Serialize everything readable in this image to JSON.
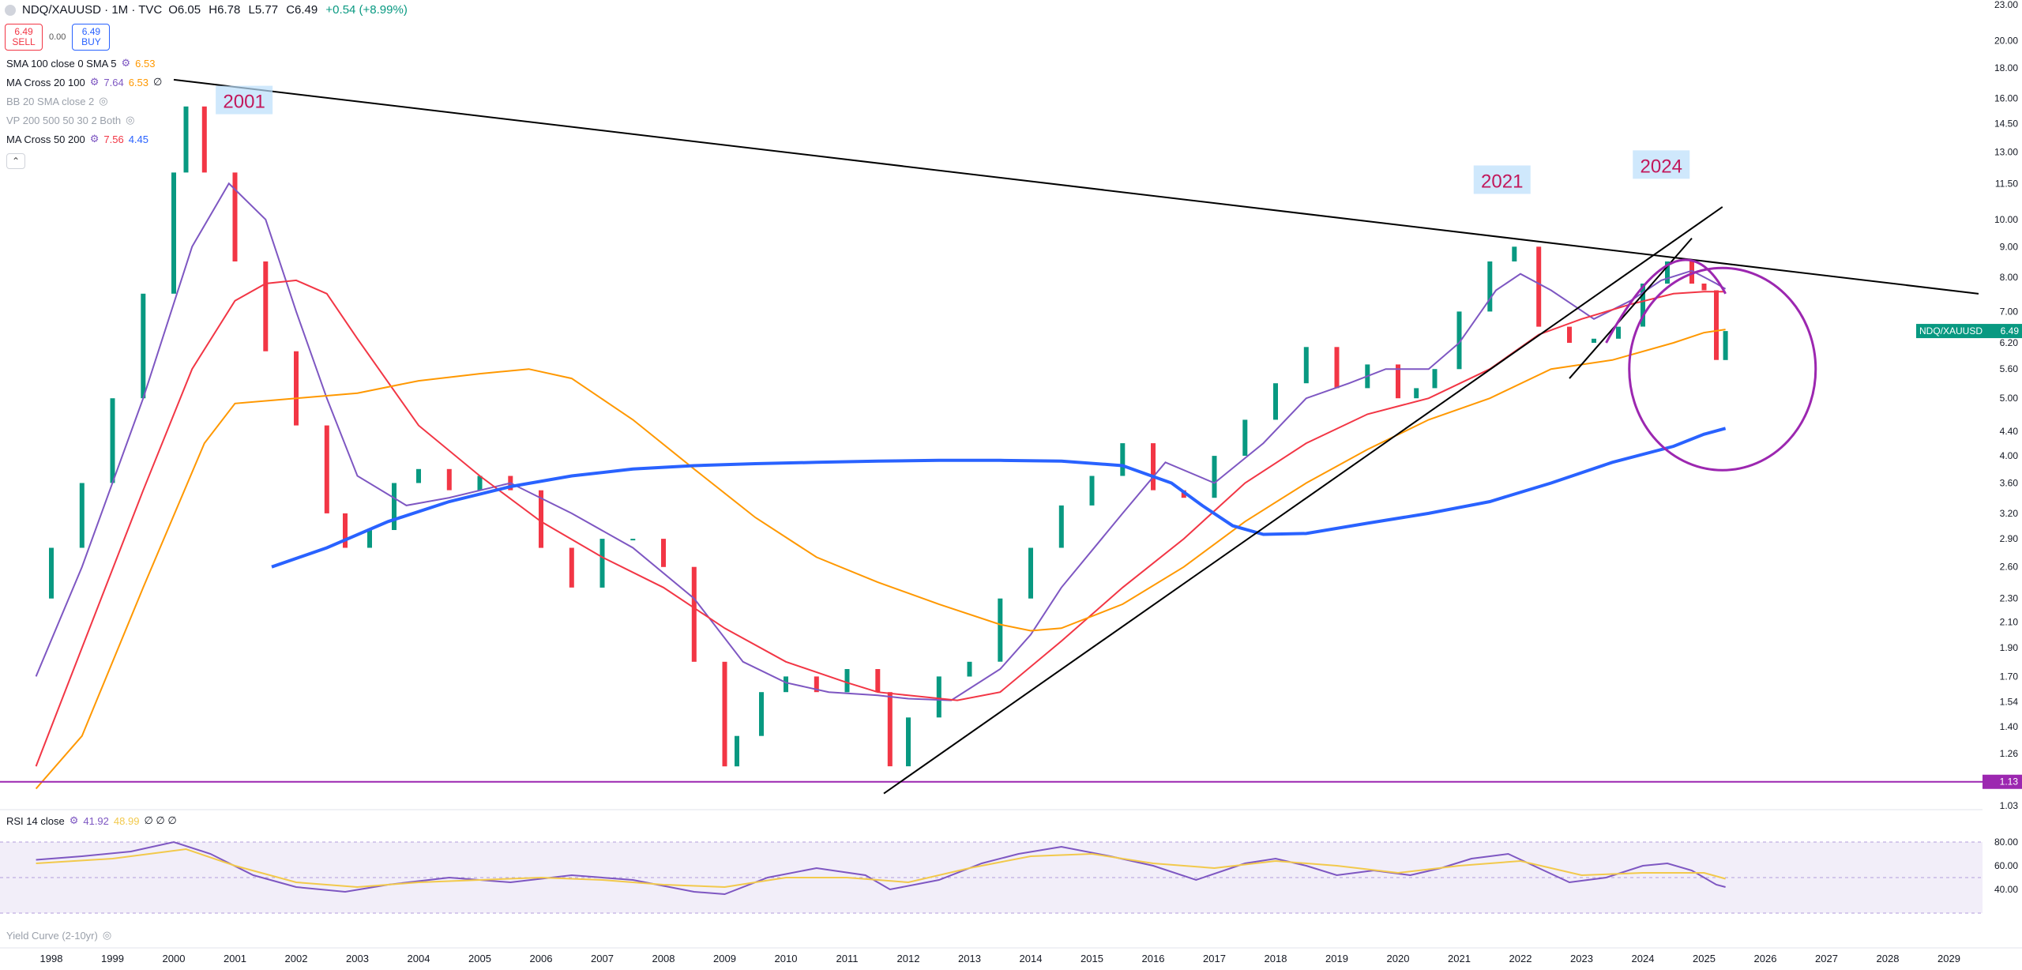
{
  "header": {
    "symbol": "NDQ/XAUUSD · 1M · TVC",
    "o": "O6.05",
    "h": "H6.78",
    "l": "L5.77",
    "c": "C6.49",
    "change": "+0.54 (+8.99%)"
  },
  "trade": {
    "sell_price": "6.49",
    "sell_label": "SELL",
    "spread": "0.00",
    "buy_price": "6.49",
    "buy_label": "BUY"
  },
  "indicators": [
    {
      "name": "SMA 100 close 0 SMA 5",
      "v1": "6.53",
      "v2": "",
      "c1": "#ff9800",
      "c2": ""
    },
    {
      "name": "MA Cross 20 100",
      "v1": "7.64",
      "v2": "6.53",
      "c1": "#7e57c2",
      "c2": "#ff9800"
    },
    {
      "name": "BB 20 SMA close 2",
      "v1": "",
      "v2": "",
      "c1": "",
      "c2": ""
    },
    {
      "name": "VP 200 500 50 30 2 Both",
      "v1": "",
      "v2": "",
      "c1": "",
      "c2": ""
    },
    {
      "name": "MA Cross 50 200",
      "v1": "7.56",
      "v2": "4.45",
      "c1": "#f23645",
      "c2": "#2962ff"
    }
  ],
  "rsi": {
    "name": "RSI 14 close",
    "v1": "41.92",
    "v2": "48.99",
    "empties": "∅ ∅ ∅"
  },
  "yield_curve": {
    "name": "Yield Curve (2-10yr)"
  },
  "annotations": [
    "2001",
    "2021",
    "2024"
  ],
  "colors": {
    "up": "#089981",
    "down": "#f23645",
    "sma5": "#7e57c2",
    "ma50": "#f23645",
    "ma100": "#ff9800",
    "ma200": "#2962ff",
    "support": "#9c27b0",
    "rsi_line": "#7e57c2",
    "rsi_signal": "#f2c94c"
  },
  "chart_data": {
    "type": "line",
    "title": "NDQ/XAUUSD · 1M · TVC",
    "y_scale": "log",
    "ylim": [
      1.03,
      23.0
    ],
    "y_ticks": [
      "23.00",
      "20.00",
      "18.00",
      "16.00",
      "14.50",
      "13.00",
      "11.50",
      "10.00",
      "9.00",
      "8.00",
      "7.00",
      "6.20",
      "5.60",
      "5.00",
      "4.40",
      "4.00",
      "3.60",
      "3.20",
      "2.90",
      "2.60",
      "2.30",
      "2.10",
      "1.90",
      "1.70",
      "1.54",
      "1.40",
      "1.26",
      "1.13",
      "1.03"
    ],
    "x_ticks": [
      "1998",
      "1999",
      "2000",
      "2001",
      "2002",
      "2003",
      "2004",
      "2005",
      "2006",
      "2007",
      "2008",
      "2009",
      "2010",
      "2011",
      "2012",
      "2013",
      "2014",
      "2015",
      "2016",
      "2017",
      "2018",
      "2019",
      "2020",
      "2021",
      "2022",
      "2023",
      "2024",
      "2025",
      "2026",
      "2027",
      "2028",
      "2029"
    ],
    "last_price": {
      "label": "NDQ/XAUUSD",
      "value": 6.49
    },
    "support_level": 1.13,
    "series": [
      {
        "name": "NDQ/XAUUSD",
        "x": [
          1997.75,
          1998.0,
          1998.5,
          1999.0,
          1999.5,
          2000.0,
          2000.2,
          2000.5,
          2001.0,
          2001.5,
          2002.0,
          2002.5,
          2002.8,
          2003.2,
          2003.6,
          2004.0,
          2004.5,
          2005.0,
          2005.5,
          2006.0,
          2006.5,
          2007.0,
          2007.5,
          2008.0,
          2008.5,
          2009.0,
          2009.2,
          2009.6,
          2010.0,
          2010.5,
          2011.0,
          2011.5,
          2011.7,
          2012.0,
          2012.5,
          2013.0,
          2013.5,
          2014.0,
          2014.5,
          2015.0,
          2015.5,
          2016.0,
          2016.5,
          2017.0,
          2017.5,
          2018.0,
          2018.5,
          2019.0,
          2019.5,
          2020.0,
          2020.3,
          2020.6,
          2021.0,
          2021.5,
          2021.9,
          2022.3,
          2022.8,
          2023.2,
          2023.6,
          2024.0,
          2024.4,
          2024.8,
          2025.0,
          2025.2,
          2025.35
        ],
        "y": [
          2.3,
          2.8,
          3.6,
          5.0,
          7.5,
          12.0,
          15.5,
          12.0,
          8.5,
          6.0,
          4.5,
          3.2,
          2.8,
          3.0,
          3.6,
          3.8,
          3.5,
          3.7,
          3.5,
          2.8,
          2.4,
          2.9,
          2.9,
          2.6,
          1.8,
          1.2,
          1.35,
          1.6,
          1.7,
          1.6,
          1.75,
          1.6,
          1.2,
          1.45,
          1.7,
          1.8,
          2.3,
          2.8,
          3.3,
          3.7,
          4.2,
          3.5,
          3.4,
          4.0,
          4.6,
          5.3,
          6.1,
          5.2,
          5.7,
          5.0,
          5.2,
          5.6,
          7.0,
          8.5,
          9.0,
          6.6,
          6.2,
          6.3,
          6.6,
          7.8,
          8.5,
          7.8,
          7.6,
          5.8,
          6.49
        ]
      },
      {
        "name": "SMA 5",
        "x": [
          1997.75,
          1998.5,
          1999.5,
          2000.3,
          2000.9,
          2001.5,
          2002.0,
          2002.5,
          2003.0,
          2003.8,
          2004.5,
          2005.5,
          2006.5,
          2007.5,
          2008.5,
          2009.3,
          2010.0,
          2010.7,
          2011.5,
          2012.0,
          2012.7,
          2013.5,
          2014.0,
          2014.5,
          2015.5,
          2016.2,
          2017.0,
          2017.8,
          2018.5,
          2019.2,
          2019.8,
          2020.5,
          2021.0,
          2021.6,
          2022.0,
          2022.5,
          2023.2,
          2023.8,
          2024.3,
          2024.8,
          2025.2,
          2025.35
        ],
        "y": [
          1.7,
          2.6,
          5.0,
          9.0,
          11.5,
          10.0,
          7.0,
          5.0,
          3.7,
          3.3,
          3.4,
          3.6,
          3.2,
          2.8,
          2.3,
          1.8,
          1.66,
          1.6,
          1.58,
          1.56,
          1.55,
          1.75,
          2.0,
          2.4,
          3.2,
          3.9,
          3.6,
          4.2,
          5.0,
          5.3,
          5.6,
          5.6,
          6.2,
          7.6,
          8.1,
          7.6,
          6.8,
          7.3,
          7.9,
          8.2,
          7.8,
          7.64
        ]
      },
      {
        "name": "MA 50",
        "x": [
          1997.75,
          1998.5,
          1999.5,
          2000.3,
          2001.0,
          2001.5,
          2002.0,
          2002.5,
          2003.0,
          2004.0,
          2005.0,
          2006.0,
          2007.0,
          2008.0,
          2009.0,
          2010.0,
          2011.0,
          2011.5,
          2012.0,
          2012.8,
          2013.5,
          2014.5,
          2015.5,
          2016.5,
          2017.5,
          2018.5,
          2019.5,
          2020.5,
          2021.5,
          2022.3,
          2023.0,
          2023.8,
          2024.5,
          2025.0,
          2025.35
        ],
        "y": [
          1.2,
          1.9,
          3.5,
          5.6,
          7.3,
          7.8,
          7.9,
          7.5,
          6.3,
          4.5,
          3.7,
          3.1,
          2.7,
          2.4,
          2.05,
          1.8,
          1.66,
          1.6,
          1.58,
          1.55,
          1.6,
          1.95,
          2.4,
          2.9,
          3.6,
          4.2,
          4.7,
          5.0,
          5.6,
          6.4,
          6.8,
          7.2,
          7.5,
          7.56,
          7.56
        ]
      },
      {
        "name": "MA 100",
        "x": [
          1997.75,
          1998.5,
          1999.5,
          2000.5,
          2001.0,
          2002.0,
          2003.0,
          2004.0,
          2005.0,
          2005.8,
          2006.5,
          2007.5,
          2008.5,
          2009.5,
          2010.5,
          2011.5,
          2012.5,
          2013.5,
          2014.0,
          2014.5,
          2015.5,
          2016.5,
          2017.5,
          2018.5,
          2019.5,
          2020.5,
          2021.5,
          2022.5,
          2023.5,
          2024.5,
          2025.0,
          2025.35
        ],
        "y": [
          1.1,
          1.35,
          2.4,
          4.2,
          4.9,
          5.0,
          5.1,
          5.35,
          5.5,
          5.6,
          5.4,
          4.6,
          3.8,
          3.15,
          2.7,
          2.45,
          2.25,
          2.08,
          2.03,
          2.05,
          2.25,
          2.6,
          3.1,
          3.6,
          4.1,
          4.6,
          5.0,
          5.6,
          5.8,
          6.2,
          6.45,
          6.53
        ]
      },
      {
        "name": "MA 200",
        "x": [
          2001.6,
          2002.5,
          2003.5,
          2004.5,
          2005.5,
          2006.5,
          2007.5,
          2008.5,
          2009.5,
          2010.5,
          2011.5,
          2012.5,
          2013.5,
          2014.5,
          2015.5,
          2016.3,
          2016.8,
          2017.3,
          2017.8,
          2018.5,
          2019.5,
          2020.5,
          2021.5,
          2022.5,
          2023.5,
          2024.5,
          2025.0,
          2025.35
        ],
        "y": [
          2.6,
          2.8,
          3.1,
          3.35,
          3.55,
          3.7,
          3.8,
          3.85,
          3.88,
          3.9,
          3.92,
          3.93,
          3.93,
          3.92,
          3.85,
          3.6,
          3.3,
          3.05,
          2.95,
          2.96,
          3.08,
          3.2,
          3.35,
          3.6,
          3.9,
          4.15,
          4.35,
          4.45
        ]
      },
      {
        "name": "RSI 14",
        "x": [
          1997.75,
          1998.5,
          1999.3,
          2000.0,
          2000.6,
          2001.3,
          2002.0,
          2002.8,
          2003.5,
          2004.5,
          2005.5,
          2006.5,
          2007.5,
          2008.5,
          2009.0,
          2009.7,
          2010.5,
          2011.3,
          2011.7,
          2012.5,
          2013.2,
          2013.8,
          2014.5,
          2015.3,
          2016.0,
          2016.7,
          2017.5,
          2018.0,
          2018.5,
          2019.0,
          2019.6,
          2020.2,
          2020.7,
          2021.2,
          2021.8,
          2022.3,
          2022.8,
          2023.4,
          2024.0,
          2024.4,
          2024.8,
          2025.2,
          2025.35
        ],
        "y": [
          65,
          68,
          72,
          80,
          70,
          52,
          42,
          38,
          44,
          50,
          46,
          52,
          48,
          38,
          36,
          50,
          58,
          52,
          40,
          48,
          62,
          70,
          76,
          68,
          60,
          48,
          62,
          66,
          60,
          52,
          56,
          52,
          58,
          66,
          70,
          58,
          46,
          50,
          60,
          62,
          56,
          44,
          42
        ]
      },
      {
        "name": "RSI MA",
        "x": [
          1997.75,
          1999.0,
          2000.2,
          2001.0,
          2002.0,
          2003.0,
          2004.0,
          2005.0,
          2006.0,
          2007.0,
          2008.0,
          2009.0,
          2010.0,
          2011.0,
          2012.0,
          2013.0,
          2014.0,
          2015.0,
          2016.0,
          2017.0,
          2018.0,
          2019.0,
          2020.0,
          2021.0,
          2022.0,
          2023.0,
          2024.0,
          2025.0,
          2025.35
        ],
        "y": [
          62,
          66,
          74,
          60,
          46,
          42,
          46,
          48,
          50,
          48,
          44,
          42,
          50,
          50,
          46,
          58,
          68,
          70,
          62,
          58,
          64,
          60,
          54,
          60,
          64,
          52,
          54,
          54,
          49
        ]
      }
    ]
  }
}
